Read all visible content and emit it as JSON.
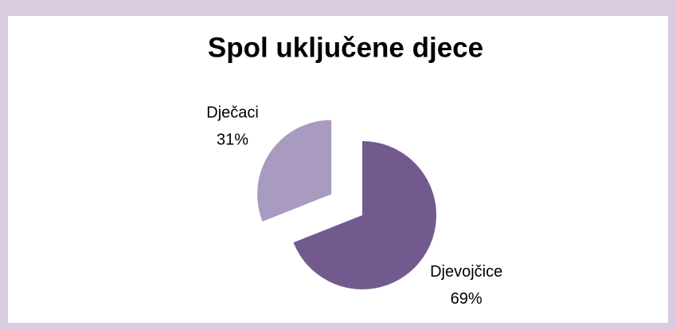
{
  "chart_data": {
    "type": "pie",
    "title": "Spol uključene djece",
    "categories": [
      "Djevojčice",
      "Dječaci"
    ],
    "values": [
      69,
      31
    ],
    "value_labels": [
      "69%",
      "31%"
    ],
    "colors": [
      "#725a8f",
      "#a99bbf"
    ]
  }
}
